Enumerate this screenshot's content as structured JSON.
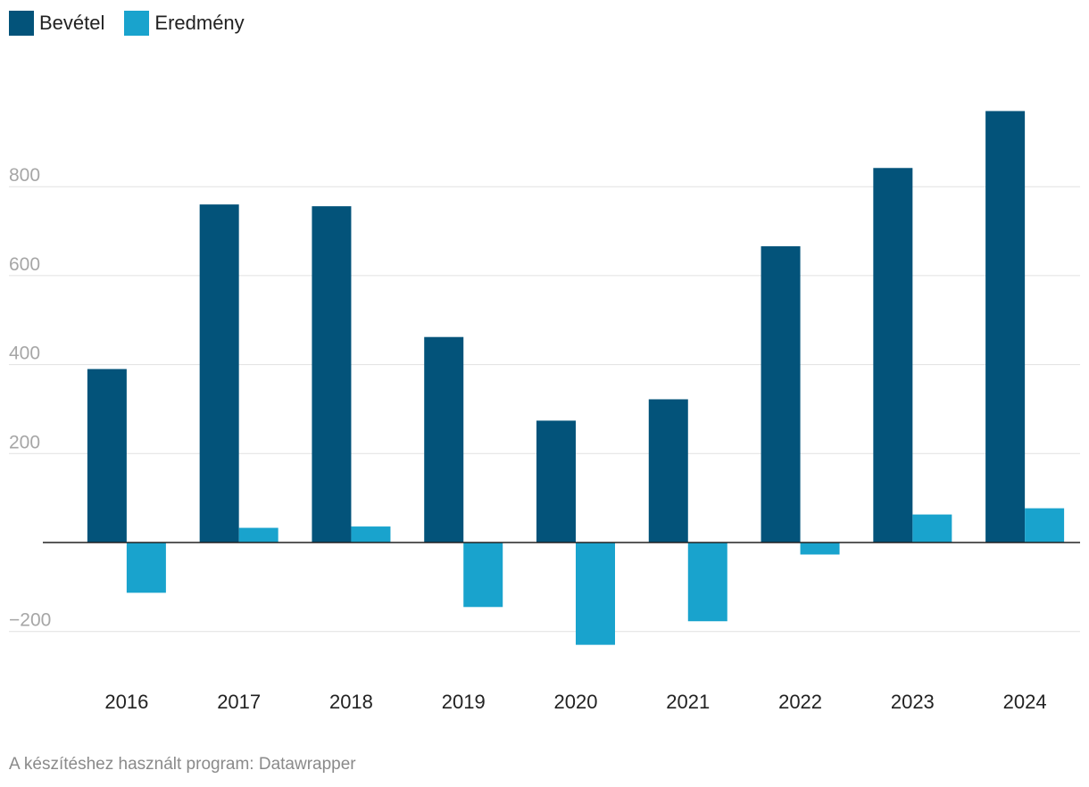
{
  "chart_data": {
    "type": "bar",
    "categories": [
      "2016",
      "2017",
      "2018",
      "2019",
      "2020",
      "2021",
      "2022",
      "2023",
      "2024"
    ],
    "series": [
      {
        "name": "Bevétel",
        "color": "#03537a",
        "values": [
          390,
          760,
          756,
          462,
          274,
          322,
          666,
          842,
          970
        ]
      },
      {
        "name": "Eredmény",
        "color": "#19a3cd",
        "values": [
          -113,
          33,
          36,
          -145,
          -230,
          -177,
          -27,
          63,
          77
        ]
      }
    ],
    "yticks": [
      -200,
      200,
      400,
      600,
      800
    ],
    "ytick_labels": [
      "−200",
      "200",
      "400",
      "600",
      "800"
    ],
    "ylim": [
      -300,
      1000
    ],
    "grid": true,
    "legend_position": "top-left"
  },
  "footer": {
    "credit": "A készítéshez használt program: Datawrapper"
  }
}
